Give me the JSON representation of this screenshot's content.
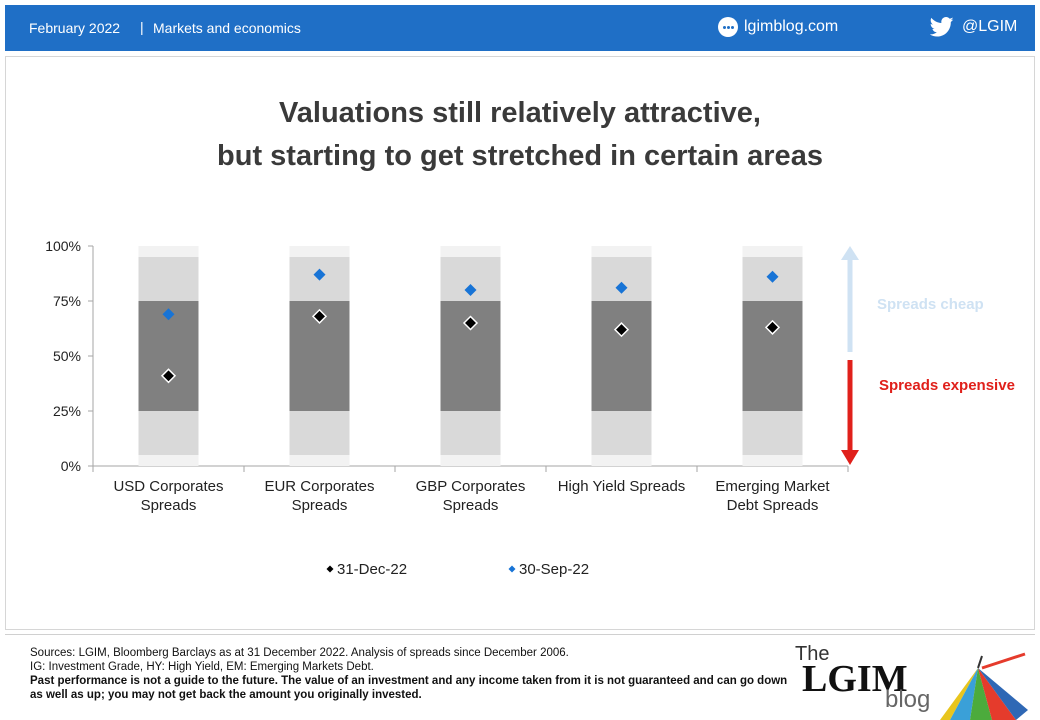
{
  "header": {
    "date": "February 2022",
    "separator": "|",
    "category": "Markets and economics",
    "site": "lgimblog.com",
    "handle": "@LGIM",
    "bar_color": "#1f6fc6",
    "site_icon": "globe-icon",
    "handle_icon": "twitter-bird-icon"
  },
  "title_line1": "Valuations still relatively attractive,",
  "title_line2": "but starting to get stretched in certain areas",
  "annotations": {
    "cheap": "Spreads cheap",
    "expensive": "Spreads expensive"
  },
  "chart_data": {
    "type": "scatter",
    "title": "Valuations still relatively attractive, but starting to get stretched in certain areas",
    "categories": [
      [
        "USD Corporates",
        "Spreads"
      ],
      [
        "EUR Corporates",
        "Spreads"
      ],
      [
        "GBP Corporates",
        "Spreads"
      ],
      [
        "High Yield Spreads"
      ],
      [
        "Emerging Market",
        "Debt Spreads"
      ]
    ],
    "y_ticks": [
      {
        "value": 0,
        "label": "0%"
      },
      {
        "value": 25,
        "label": "25%"
      },
      {
        "value": 50,
        "label": "50%"
      },
      {
        "value": 75,
        "label": "75%"
      },
      {
        "value": 100,
        "label": "100%"
      }
    ],
    "ylim": [
      0,
      100
    ],
    "bands": {
      "outer": [
        0,
        100
      ],
      "mid": [
        5,
        95
      ],
      "inner": [
        25,
        75
      ]
    },
    "band_colors": {
      "outer": "#f2f2f2",
      "mid": "#d9d9d9",
      "inner": "#808080"
    },
    "series": [
      {
        "name": "31-Dec-22",
        "color": "#000000",
        "values": [
          41,
          68,
          65,
          62,
          63
        ]
      },
      {
        "name": "30-Sep-22",
        "color": "#1874d6",
        "values": [
          69,
          87,
          80,
          81,
          86
        ]
      }
    ],
    "legend_position": "bottom"
  },
  "footer": {
    "sources": "Sources: LGIM, Bloomberg Barclays as at 31 December 2022. Analysis of spreads since December 2006.",
    "abbrev": "IG: Investment Grade, HY: High Yield, EM: Emerging Markets Debt.",
    "disclaimer": " Past performance is not a guide to the future. The value of an investment and any income taken from it is not guaranteed and can go down as well as up; you may not get back the amount you originally invested."
  },
  "brand": {
    "the": "The",
    "name": "LGIM",
    "blog": "blog",
    "logo_icon": "umbrella-icon"
  }
}
